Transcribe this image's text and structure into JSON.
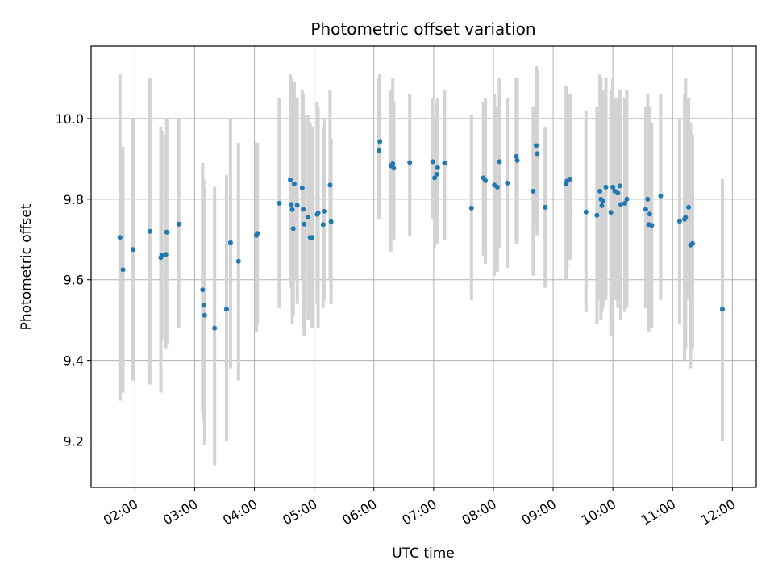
{
  "chart_data": {
    "type": "scatter",
    "title": "Photometric offset variation",
    "xlabel": "UTC time",
    "ylabel": "Photometric offset",
    "xlim": [
      "01:16",
      "12:24"
    ],
    "ylim": [
      9.085,
      10.18
    ],
    "grid": true,
    "legend": "none",
    "colors": {
      "point": "#1f77b4",
      "errorbar": "#d3d3d3",
      "grid": "#b0b0b0"
    },
    "xticks": [
      "02:00",
      "03:00",
      "04:00",
      "05:00",
      "06:00",
      "07:00",
      "08:00",
      "09:00",
      "10:00",
      "11:00",
      "12:00"
    ],
    "yticks": [
      9.2,
      9.4,
      9.6,
      9.8,
      10.0
    ],
    "ytick_labels": [
      "9.2",
      "9.4",
      "9.6",
      "9.8",
      "10.0"
    ],
    "series": [
      {
        "x": [
          "01:45",
          "01:48",
          "01:58",
          "02:15",
          "02:26",
          "02:27",
          "02:31",
          "02:32",
          "02:44",
          "03:08",
          "03:09",
          "03:10",
          "03:20",
          "03:32",
          "03:36",
          "03:44",
          "04:02",
          "04:03",
          "04:25",
          "04:36",
          "04:37",
          "04:38",
          "04:39",
          "04:40",
          "04:43",
          "04:48",
          "04:49",
          "04:50",
          "04:54",
          "04:56",
          "04:58",
          "05:03",
          "05:04",
          "05:09",
          "05:10",
          "05:16",
          "05:17",
          "06:05",
          "06:06",
          "06:17",
          "06:19",
          "06:20",
          "06:36",
          "06:59",
          "07:01",
          "07:03",
          "07:04",
          "07:11",
          "07:38",
          "07:50",
          "07:52",
          "08:01",
          "08:04",
          "08:06",
          "08:14",
          "08:23",
          "08:24",
          "08:40",
          "08:43",
          "08:44",
          "08:52",
          "09:13",
          "09:14",
          "09:17",
          "09:33",
          "09:44",
          "09:47",
          "09:48",
          "09:49",
          "09:50",
          "09:53",
          "09:58",
          "10:00",
          "10:02",
          "10:05",
          "10:07",
          "10:08",
          "10:12",
          "10:14",
          "10:33",
          "10:35",
          "10:36",
          "10:37",
          "10:39",
          "10:48",
          "11:07",
          "11:12",
          "11:13",
          "11:16",
          "11:18",
          "11:20",
          "11:50"
        ],
        "y": [
          9.705,
          9.625,
          9.675,
          9.72,
          9.655,
          9.66,
          9.663,
          9.718,
          9.738,
          9.575,
          9.537,
          9.512,
          9.48,
          9.527,
          9.692,
          9.646,
          9.71,
          9.715,
          9.79,
          9.848,
          9.787,
          9.774,
          9.727,
          9.838,
          9.785,
          9.828,
          9.775,
          9.738,
          9.755,
          9.705,
          9.705,
          9.762,
          9.766,
          9.737,
          9.77,
          9.835,
          9.744,
          9.92,
          9.943,
          9.883,
          9.888,
          9.877,
          9.891,
          9.893,
          9.853,
          9.862,
          9.878,
          9.89,
          9.778,
          9.853,
          9.846,
          9.835,
          9.83,
          9.893,
          9.84,
          9.906,
          9.896,
          9.82,
          9.933,
          9.913,
          9.78,
          9.838,
          9.845,
          9.85,
          9.768,
          9.76,
          9.82,
          9.8,
          9.784,
          9.796,
          9.83,
          9.767,
          9.83,
          9.82,
          9.815,
          9.833,
          9.787,
          9.79,
          9.8,
          9.775,
          9.8,
          9.737,
          9.763,
          9.735,
          9.808,
          9.745,
          9.75,
          9.755,
          9.78,
          9.686,
          9.69,
          9.527
        ],
        "yerr_low": [
          9.3,
          9.32,
          9.35,
          9.34,
          9.32,
          9.45,
          9.43,
          9.44,
          9.48,
          9.27,
          9.25,
          9.19,
          9.14,
          9.2,
          9.38,
          9.35,
          9.47,
          9.49,
          9.53,
          9.59,
          9.58,
          9.49,
          9.51,
          9.6,
          9.54,
          9.6,
          9.47,
          9.46,
          9.5,
          9.51,
          9.48,
          9.54,
          9.48,
          9.53,
          9.55,
          9.6,
          9.54,
          9.75,
          9.76,
          9.67,
          9.72,
          9.7,
          9.71,
          9.75,
          9.68,
          9.7,
          9.69,
          9.7,
          9.55,
          9.66,
          9.64,
          9.61,
          9.62,
          9.68,
          9.63,
          9.69,
          9.69,
          9.61,
          9.73,
          9.71,
          9.58,
          9.6,
          9.63,
          9.65,
          9.52,
          9.49,
          9.55,
          9.5,
          9.52,
          9.53,
          9.55,
          9.46,
          9.51,
          9.55,
          9.53,
          9.57,
          9.5,
          9.52,
          9.53,
          9.53,
          9.53,
          9.47,
          9.48,
          9.48,
          9.55,
          9.49,
          9.4,
          9.43,
          9.55,
          9.38,
          9.43,
          9.2
        ],
        "yerr_high": [
          10.11,
          9.93,
          10.0,
          10.1,
          9.98,
          9.97,
          9.96,
          10.0,
          10.0,
          9.89,
          9.85,
          9.83,
          9.83,
          9.86,
          10.0,
          9.94,
          9.94,
          9.94,
          10.05,
          10.11,
          10.1,
          10.05,
          10.03,
          10.09,
          10.05,
          10.07,
          10.06,
          10.01,
          10.01,
          9.99,
          9.98,
          10.04,
          10.03,
          9.98,
          10.0,
          10.07,
          9.95,
          10.1,
          10.11,
          10.07,
          10.1,
          10.04,
          10.06,
          10.05,
          10.0,
          10.04,
          10.05,
          10.07,
          10.01,
          10.04,
          10.05,
          10.06,
          10.03,
          10.1,
          10.05,
          10.1,
          10.1,
          10.03,
          10.13,
          10.12,
          9.98,
          10.08,
          10.05,
          10.06,
          10.02,
          10.03,
          10.11,
          10.1,
          10.05,
          10.07,
          10.1,
          10.07,
          10.1,
          10.05,
          10.05,
          10.07,
          10.05,
          10.05,
          10.07,
          10.03,
          10.06,
          10.0,
          10.03,
          9.99,
          10.06,
          10.0,
          10.06,
          10.1,
          10.05,
          9.99,
          9.96,
          9.85
        ]
      }
    ]
  }
}
